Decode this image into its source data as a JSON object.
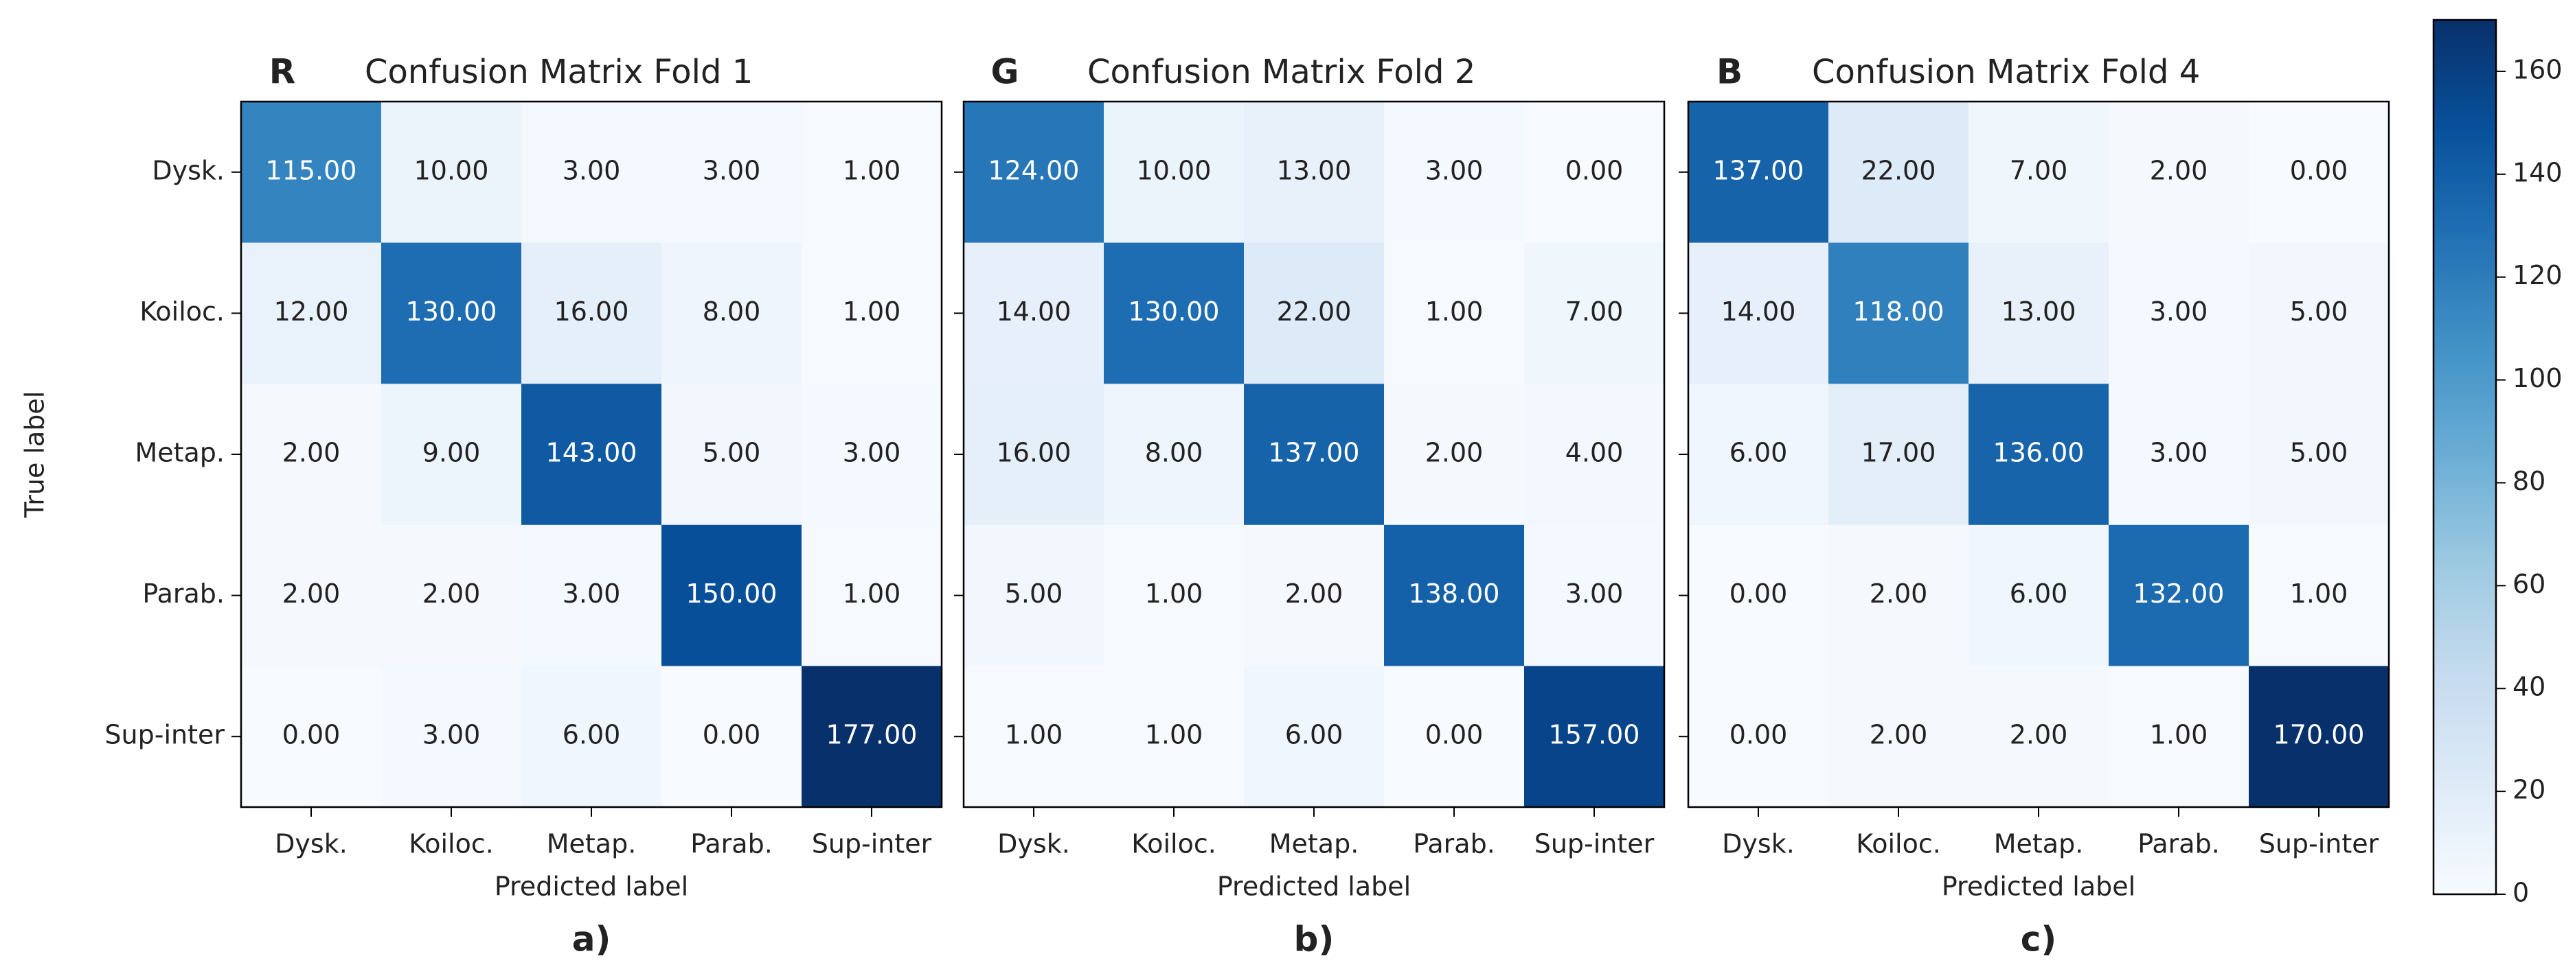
{
  "chart_data": [
    {
      "type": "heatmap",
      "panel_letter": "R",
      "title": "Confusion Matrix Fold 1",
      "caption": "a)",
      "x_label": "Predicted label",
      "y_label": "True label",
      "categories": [
        "Dysk.",
        "Koiloc.",
        "Metap.",
        "Parab.",
        "Sup-inter"
      ],
      "y_categories": [
        "Dysk.",
        "Koiloc.",
        "Metap.",
        "Parab.",
        "Sup-inter"
      ],
      "values": [
        [
          115,
          10,
          3,
          3,
          1
        ],
        [
          12,
          130,
          16,
          8,
          1
        ],
        [
          2,
          9,
          143,
          5,
          3
        ],
        [
          2,
          2,
          3,
          150,
          1
        ],
        [
          0,
          3,
          6,
          0,
          177
        ]
      ],
      "value_labels": [
        [
          "115.00",
          "10.00",
          "3.00",
          "3.00",
          "1.00"
        ],
        [
          "12.00",
          "130.00",
          "16.00",
          "8.00",
          "1.00"
        ],
        [
          "2.00",
          "9.00",
          "143.00",
          "5.00",
          "3.00"
        ],
        [
          "2.00",
          "2.00",
          "3.00",
          "150.00",
          "1.00"
        ],
        [
          "0.00",
          "3.00",
          "6.00",
          "0.00",
          "177.00"
        ]
      ]
    },
    {
      "type": "heatmap",
      "panel_letter": "G",
      "title": "Confusion Matrix Fold 2",
      "caption": "b)",
      "x_label": "Predicted label",
      "categories": [
        "Dysk.",
        "Koiloc.",
        "Metap.",
        "Parab.",
        "Sup-inter"
      ],
      "values": [
        [
          124,
          10,
          13,
          3,
          0
        ],
        [
          14,
          130,
          22,
          1,
          7
        ],
        [
          16,
          8,
          137,
          2,
          4
        ],
        [
          5,
          1,
          2,
          138,
          3
        ],
        [
          1,
          1,
          6,
          0,
          157
        ]
      ],
      "value_labels": [
        [
          "124.00",
          "10.00",
          "13.00",
          "3.00",
          "0.00"
        ],
        [
          "14.00",
          "130.00",
          "22.00",
          "1.00",
          "7.00"
        ],
        [
          "16.00",
          "8.00",
          "137.00",
          "2.00",
          "4.00"
        ],
        [
          "5.00",
          "1.00",
          "2.00",
          "138.00",
          "3.00"
        ],
        [
          "1.00",
          "1.00",
          "6.00",
          "0.00",
          "157.00"
        ]
      ]
    },
    {
      "type": "heatmap",
      "panel_letter": "B",
      "title": "Confusion Matrix Fold 4",
      "caption": "c)",
      "x_label": "Predicted label",
      "categories": [
        "Dysk.",
        "Koiloc.",
        "Metap.",
        "Parab.",
        "Sup-inter"
      ],
      "values": [
        [
          137,
          22,
          7,
          2,
          0
        ],
        [
          14,
          118,
          13,
          3,
          5
        ],
        [
          6,
          17,
          136,
          3,
          5
        ],
        [
          0,
          2,
          6,
          132,
          1
        ],
        [
          0,
          2,
          2,
          1,
          170
        ]
      ],
      "value_labels": [
        [
          "137.00",
          "22.00",
          "7.00",
          "2.00",
          "0.00"
        ],
        [
          "14.00",
          "118.00",
          "13.00",
          "3.00",
          "5.00"
        ],
        [
          "6.00",
          "17.00",
          "136.00",
          "3.00",
          "5.00"
        ],
        [
          "0.00",
          "2.00",
          "6.00",
          "132.00",
          "1.00"
        ],
        [
          "0.00",
          "2.00",
          "2.00",
          "1.00",
          "170.00"
        ]
      ]
    }
  ],
  "colorbar": {
    "lim": [
      0,
      170
    ],
    "ticks": [
      0,
      20,
      40,
      60,
      80,
      100,
      120,
      140,
      160
    ],
    "colormap": [
      "#f7fbff",
      "#deebf7",
      "#c6dbef",
      "#9ecae1",
      "#6baed6",
      "#4292c6",
      "#2171b5",
      "#08519c",
      "#08306b"
    ]
  }
}
